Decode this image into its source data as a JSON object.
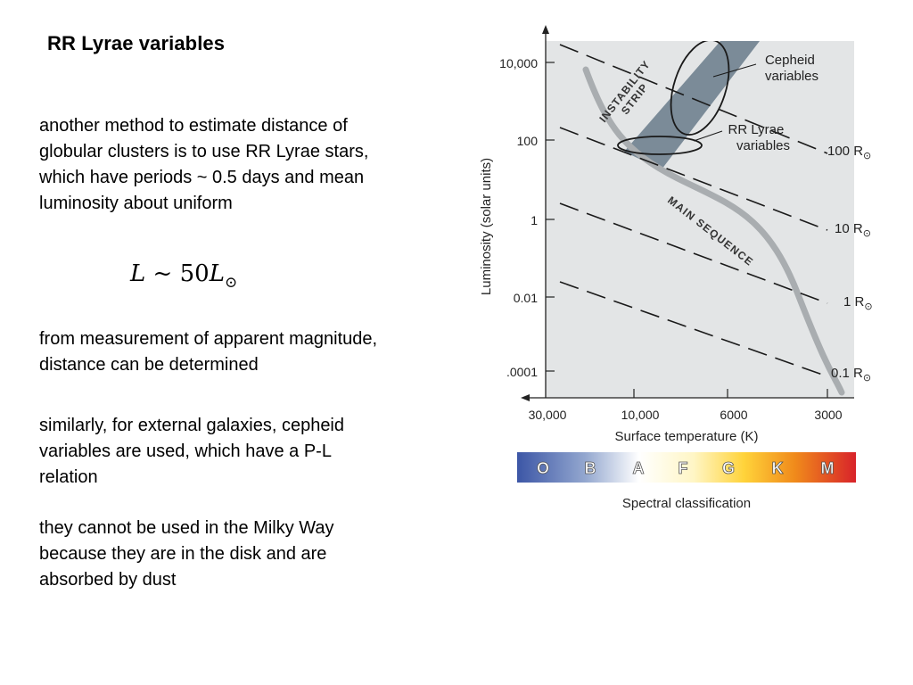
{
  "slide": {
    "title": "RR Lyrae variables",
    "paragraphs": [
      "another method to estimate distance of globular clusters is to use RR Lyrae stars, which have periods ~ 0.5 days and mean luminosity about uniform",
      "from measurement of apparent magnitude, distance can be determined",
      "similarly, for external galaxies, cepheid variables are used, which have a P-L relation",
      "they cannot be used in the Milky Way because they are in the disk and are absorbed by dust"
    ],
    "formula": {
      "lhs": "L",
      "relation": "~",
      "coefficient": "50",
      "symbol": "L",
      "subscript": "⊙"
    }
  },
  "diagram": {
    "y_axis_label": "Luminosity (solar units)",
    "y_ticks": [
      "10,000",
      "100",
      "1",
      "0.01",
      ".0001"
    ],
    "x_axis_label": "Surface temperature (K)",
    "x_ticks": [
      "30,000",
      "10,000",
      "6000",
      "3000"
    ],
    "strip_label": [
      "INSTABILITY",
      "STRIP"
    ],
    "main_sequence_label": "MAIN SEQUENCE",
    "cepheid_label": [
      "Cepheid",
      "variables"
    ],
    "rr_lyrae_label": [
      "RR Lyrae",
      "variables"
    ],
    "radius_lines": [
      {
        "value": "100 R",
        "symbol": "⊙"
      },
      {
        "value": "10 R",
        "symbol": "⊙"
      },
      {
        "value": "1 R",
        "symbol": "⊙"
      },
      {
        "value": "0.1 R",
        "symbol": "⊙"
      }
    ],
    "spectral_classes": [
      "O",
      "B",
      "A",
      "F",
      "G",
      "K",
      "M"
    ],
    "spectral_label": "Spectral classification",
    "colors": {
      "plot_background": "#e3e5e6",
      "instability_strip": "#7b8b98",
      "main_sequence": "#a9adb0",
      "spectral_gradient": [
        "#3c56a6",
        "#93a7cf",
        "#ffffff",
        "#fff6c6",
        "#ffd33a",
        "#f08a1b",
        "#d8232a"
      ]
    }
  }
}
